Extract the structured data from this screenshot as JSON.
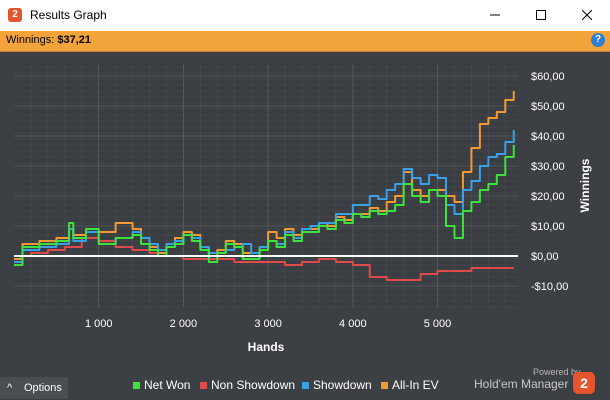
{
  "window": {
    "title": "Results Graph",
    "app_icon": "2",
    "controls": [
      "minimize-icon",
      "maximize-icon",
      "close-icon"
    ]
  },
  "infobar": {
    "winnings_label": "Winnings:",
    "winnings_value": "$37,21",
    "help_icon": "?"
  },
  "footer": {
    "options_arrow": "^",
    "options_label": "Options",
    "powered_by": "Powered by",
    "brand": "Hold'em Manager",
    "brand_logo": "2"
  },
  "colors": {
    "background": "#3c3f43",
    "net_won": "#3ee23e",
    "non_showdown": "#e04a4a",
    "showdown": "#3aa0e8",
    "all_in_ev": "#f39a34",
    "zero_line": "#ffffff"
  },
  "chart_data": {
    "type": "line",
    "xlabel": "Hands",
    "ylabel": "Winnings",
    "x_ticks": [
      1000,
      2000,
      3000,
      4000,
      5000
    ],
    "x_tick_labels": [
      "1 000",
      "2 000",
      "3 000",
      "4 000",
      "5 000"
    ],
    "y_ticks": [
      -10,
      0,
      10,
      20,
      30,
      40,
      50,
      60
    ],
    "y_tick_labels": [
      "-$10,00",
      "$0,00",
      "$10,00",
      "$20,00",
      "$30,00",
      "$40,00",
      "$50,00",
      "$60,00"
    ],
    "xlim": [
      0,
      5950
    ],
    "ylim": [
      -17,
      64
    ],
    "grid": true,
    "legend_position": "bottom",
    "series": [
      {
        "name": "Net Won",
        "color": "#3ee23e",
        "x": [
          0,
          100,
          300,
          500,
          650,
          700,
          850,
          1000,
          1200,
          1400,
          1500,
          1600,
          1700,
          1800,
          1900,
          2000,
          2100,
          2200,
          2300,
          2400,
          2500,
          2600,
          2700,
          2800,
          2900,
          3000,
          3100,
          3200,
          3300,
          3400,
          3500,
          3600,
          3700,
          3800,
          3900,
          4000,
          4100,
          4200,
          4300,
          4400,
          4500,
          4600,
          4700,
          4800,
          4900,
          5000,
          5100,
          5200,
          5300,
          5400,
          5500,
          5600,
          5700,
          5800,
          5900
        ],
        "y": [
          -3,
          3,
          4,
          5,
          11,
          6,
          9,
          4,
          6,
          7,
          4,
          2,
          0,
          3,
          4,
          7,
          5,
          2,
          -2,
          1,
          4,
          3,
          -1,
          -1,
          2,
          5,
          3,
          7,
          5,
          8,
          8,
          10,
          9,
          12,
          11,
          14,
          13,
          15,
          14,
          15,
          17,
          24,
          20,
          18,
          22,
          20,
          10,
          6,
          15,
          18,
          22,
          24,
          27,
          33,
          37
        ]
      },
      {
        "name": "Non Showdown",
        "color": "#e04a4a",
        "x": [
          0,
          200,
          400,
          600,
          800,
          1000,
          1200,
          1400,
          1600,
          1800,
          2000,
          2200,
          2400,
          2600,
          2800,
          3000,
          3200,
          3400,
          3600,
          3800,
          4000,
          4200,
          4400,
          4600,
          4800,
          5000,
          5200,
          5400,
          5600,
          5800,
          5900
        ],
        "y": [
          0,
          1,
          2,
          3,
          6,
          5,
          3,
          2,
          1,
          0,
          -1,
          -1,
          -1,
          -2,
          -2,
          -2,
          -3,
          -2,
          -1,
          -2,
          -3,
          -7,
          -8,
          -8,
          -6,
          -5,
          -5,
          -4,
          -4,
          -4,
          -4
        ]
      },
      {
        "name": "Showdown",
        "color": "#3aa0e8",
        "x": [
          0,
          100,
          300,
          500,
          650,
          700,
          850,
          1000,
          1200,
          1400,
          1500,
          1600,
          1700,
          1800,
          1900,
          2000,
          2100,
          2200,
          2300,
          2400,
          2500,
          2600,
          2700,
          2800,
          2900,
          3000,
          3100,
          3200,
          3300,
          3400,
          3500,
          3600,
          3700,
          3800,
          3900,
          4000,
          4100,
          4200,
          4300,
          4400,
          4500,
          4600,
          4700,
          4800,
          4900,
          5000,
          5100,
          5200,
          5300,
          5400,
          5500,
          5600,
          5700,
          5800,
          5900
        ],
        "y": [
          -2,
          2,
          3,
          4,
          9,
          5,
          8,
          4,
          6,
          8,
          6,
          4,
          2,
          4,
          5,
          7,
          6,
          3,
          1,
          1,
          2,
          3,
          4,
          1,
          3,
          5,
          4,
          8,
          6,
          9,
          10,
          11,
          11,
          14,
          14,
          17,
          17,
          20,
          19,
          22,
          24,
          29,
          26,
          24,
          27,
          26,
          17,
          14,
          22,
          25,
          30,
          33,
          34,
          38,
          42
        ]
      },
      {
        "name": "All-In EV",
        "color": "#f39a34",
        "x": [
          0,
          100,
          300,
          500,
          650,
          700,
          850,
          1000,
          1200,
          1400,
          1500,
          1600,
          1700,
          1800,
          1900,
          2000,
          2100,
          2200,
          2300,
          2400,
          2500,
          2600,
          2700,
          2800,
          2900,
          3000,
          3100,
          3200,
          3300,
          3400,
          3500,
          3600,
          3700,
          3800,
          3900,
          4000,
          4100,
          4200,
          4300,
          4400,
          4500,
          4600,
          4700,
          4800,
          4900,
          5000,
          5100,
          5200,
          5300,
          5400,
          5500,
          5600,
          5700,
          5800,
          5900
        ],
        "y": [
          -1,
          4,
          5,
          6,
          9,
          7,
          8,
          8,
          11,
          9,
          6,
          3,
          1,
          4,
          6,
          8,
          7,
          3,
          1,
          2,
          5,
          4,
          1,
          1,
          3,
          8,
          6,
          9,
          7,
          9,
          9,
          11,
          10,
          13,
          12,
          14,
          14,
          16,
          15,
          18,
          20,
          28,
          22,
          20,
          22,
          22,
          20,
          18,
          28,
          36,
          44,
          46,
          48,
          52,
          55
        ]
      }
    ]
  }
}
